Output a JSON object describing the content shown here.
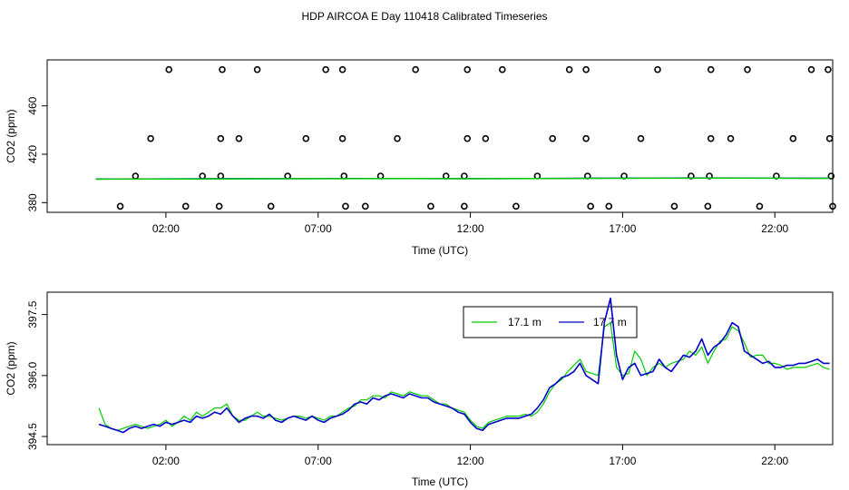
{
  "title": "HDP AIRCOA E  Day 110418  Calibrated Timeseries",
  "chart_data": [
    {
      "type": "scatter",
      "xlabel": "Time (UTC)",
      "ylabel": "CO2 (ppm)",
      "xlim": [
        -1.9,
        23.9
      ],
      "ylim": [
        372,
        498
      ],
      "x_ticks": [
        2,
        7,
        12,
        17,
        22
      ],
      "x_tick_labels": [
        "02:00",
        "07:00",
        "12:00",
        "17:00",
        "22:00"
      ],
      "y_ticks": [
        380,
        420,
        460
      ],
      "y_tick_labels": [
        "380",
        "420",
        "460"
      ],
      "grid": false,
      "points": [
        {
          "x": 2.1,
          "y": 490
        },
        {
          "x": 3.85,
          "y": 490
        },
        {
          "x": 5.0,
          "y": 490
        },
        {
          "x": 7.25,
          "y": 490
        },
        {
          "x": 7.8,
          "y": 490
        },
        {
          "x": 10.2,
          "y": 490
        },
        {
          "x": 11.9,
          "y": 490
        },
        {
          "x": 13.05,
          "y": 490
        },
        {
          "x": 15.25,
          "y": 490
        },
        {
          "x": 15.8,
          "y": 490
        },
        {
          "x": 18.15,
          "y": 490
        },
        {
          "x": 19.9,
          "y": 490
        },
        {
          "x": 21.1,
          "y": 490
        },
        {
          "x": 23.2,
          "y": 490
        },
        {
          "x": 23.75,
          "y": 490
        },
        {
          "x": 1.5,
          "y": 433
        },
        {
          "x": 3.8,
          "y": 433
        },
        {
          "x": 4.4,
          "y": 433
        },
        {
          "x": 6.6,
          "y": 433
        },
        {
          "x": 7.8,
          "y": 433
        },
        {
          "x": 9.6,
          "y": 433
        },
        {
          "x": 11.9,
          "y": 433
        },
        {
          "x": 12.5,
          "y": 433
        },
        {
          "x": 14.7,
          "y": 433
        },
        {
          "x": 15.8,
          "y": 433
        },
        {
          "x": 17.6,
          "y": 433
        },
        {
          "x": 19.9,
          "y": 433
        },
        {
          "x": 20.55,
          "y": 433
        },
        {
          "x": 22.6,
          "y": 433
        },
        {
          "x": 23.8,
          "y": 433
        },
        {
          "x": 1.0,
          "y": 402
        },
        {
          "x": 3.2,
          "y": 402
        },
        {
          "x": 3.8,
          "y": 402
        },
        {
          "x": 6.0,
          "y": 402
        },
        {
          "x": 7.85,
          "y": 402
        },
        {
          "x": 9.05,
          "y": 402
        },
        {
          "x": 11.2,
          "y": 402
        },
        {
          "x": 11.8,
          "y": 402
        },
        {
          "x": 14.2,
          "y": 402
        },
        {
          "x": 15.85,
          "y": 402
        },
        {
          "x": 17.05,
          "y": 402
        },
        {
          "x": 19.25,
          "y": 402
        },
        {
          "x": 19.85,
          "y": 402
        },
        {
          "x": 22.05,
          "y": 402
        },
        {
          "x": 23.85,
          "y": 402
        },
        {
          "x": 0.5,
          "y": 377
        },
        {
          "x": 2.65,
          "y": 377
        },
        {
          "x": 3.75,
          "y": 377
        },
        {
          "x": 5.45,
          "y": 377
        },
        {
          "x": 7.9,
          "y": 377
        },
        {
          "x": 8.55,
          "y": 377
        },
        {
          "x": 10.7,
          "y": 377
        },
        {
          "x": 11.8,
          "y": 377
        },
        {
          "x": 13.5,
          "y": 377
        },
        {
          "x": 15.95,
          "y": 377
        },
        {
          "x": 16.55,
          "y": 377
        },
        {
          "x": 18.7,
          "y": 377
        },
        {
          "x": 19.8,
          "y": 377
        },
        {
          "x": 21.5,
          "y": 377
        },
        {
          "x": 23.9,
          "y": 377
        }
      ],
      "series": [
        {
          "color": "#0000cc",
          "x": [
            -0.3,
            2,
            4,
            6,
            8,
            10,
            12,
            14,
            16,
            18,
            20,
            22,
            23.8
          ],
          "values": [
            399.5,
            399.7,
            399.8,
            399.8,
            399.9,
            400.0,
            399.8,
            400.0,
            400.2,
            400.3,
            400.4,
            400.3,
            400.2
          ]
        },
        {
          "color": "#00cc00",
          "x": [
            -0.3,
            2,
            4,
            6,
            8,
            10,
            12,
            14,
            16,
            18,
            20,
            22,
            23.8
          ],
          "values": [
            399.4,
            399.6,
            399.7,
            399.8,
            399.8,
            399.9,
            399.8,
            399.9,
            400.1,
            400.2,
            400.3,
            400.2,
            400.1
          ]
        }
      ]
    },
    {
      "type": "line",
      "xlabel": "Time (UTC)",
      "ylabel": "CO2 (ppm)",
      "xlim": [
        -1.9,
        23.9
      ],
      "ylim": [
        394.3,
        398.05
      ],
      "x_ticks": [
        2,
        7,
        12,
        17,
        22
      ],
      "x_tick_labels": [
        "02:00",
        "07:00",
        "12:00",
        "17:00",
        "22:00"
      ],
      "y_ticks": [
        394.5,
        396.0,
        397.5
      ],
      "y_tick_labels": [
        "394.5",
        "396.0",
        "397.5"
      ],
      "grid": false,
      "legend": {
        "position": "top-right"
      },
      "series": [
        {
          "name": "17.1 m",
          "color": "#00cc00",
          "x": [
            -0.2,
            0.0,
            0.2,
            0.4,
            0.6,
            0.8,
            1.0,
            1.2,
            1.4,
            1.6,
            1.8,
            2.0,
            2.2,
            2.4,
            2.6,
            2.8,
            3.0,
            3.2,
            3.4,
            3.6,
            3.8,
            4.0,
            4.2,
            4.4,
            4.6,
            4.8,
            5.0,
            5.2,
            5.4,
            5.6,
            5.8,
            6.0,
            6.2,
            6.4,
            6.6,
            6.8,
            7.0,
            7.2,
            7.4,
            7.6,
            7.8,
            8.0,
            8.2,
            8.4,
            8.6,
            8.8,
            9.0,
            9.2,
            9.4,
            9.6,
            9.8,
            10.0,
            10.2,
            10.4,
            10.6,
            10.8,
            11.0,
            11.2,
            11.4,
            11.6,
            11.8,
            12.0,
            12.2,
            12.4,
            12.6,
            12.8,
            13.0,
            13.2,
            13.4,
            13.6,
            13.8,
            14.0,
            14.2,
            14.4,
            14.6,
            14.8,
            15.0,
            15.2,
            15.4,
            15.6,
            15.8,
            16.0,
            16.2,
            16.4,
            16.6,
            16.8,
            17.0,
            17.2,
            17.4,
            17.6,
            17.8,
            18.0,
            18.2,
            18.4,
            18.6,
            18.8,
            19.0,
            19.2,
            19.4,
            19.6,
            19.8,
            20.0,
            20.2,
            20.4,
            20.6,
            20.8,
            21.0,
            21.2,
            21.4,
            21.6,
            21.8,
            22.0,
            22.2,
            22.4,
            22.6,
            22.8,
            23.0,
            23.2,
            23.4,
            23.6,
            23.8
          ],
          "values": [
            395.2,
            394.8,
            394.7,
            394.65,
            394.7,
            394.75,
            394.8,
            394.75,
            394.7,
            394.75,
            394.8,
            394.9,
            394.75,
            394.85,
            395.0,
            394.9,
            395.1,
            395.0,
            395.1,
            395.2,
            395.2,
            395.3,
            395.0,
            394.9,
            394.9,
            395.0,
            395.1,
            395.0,
            395.0,
            394.95,
            394.9,
            394.95,
            395.0,
            395.0,
            394.95,
            395.0,
            394.95,
            394.9,
            395.0,
            395.0,
            395.1,
            395.2,
            395.25,
            395.4,
            395.4,
            395.5,
            395.5,
            395.45,
            395.6,
            395.55,
            395.5,
            395.6,
            395.55,
            395.5,
            395.5,
            395.4,
            395.3,
            395.3,
            395.2,
            395.15,
            395.1,
            394.9,
            394.75,
            394.7,
            394.85,
            394.9,
            394.95,
            395.0,
            395.0,
            395.0,
            395.05,
            395.0,
            395.1,
            395.3,
            395.6,
            395.8,
            395.9,
            396.1,
            396.25,
            396.4,
            396.1,
            396.05,
            396.0,
            397.2,
            397.3,
            396.2,
            396.0,
            396.05,
            396.6,
            396.4,
            396.0,
            396.2,
            396.3,
            396.2,
            396.3,
            396.35,
            396.4,
            396.6,
            396.5,
            396.7,
            396.3,
            396.6,
            396.85,
            396.9,
            397.2,
            397.1,
            396.8,
            396.45,
            396.5,
            396.5,
            396.3,
            396.3,
            396.25,
            396.15,
            396.2,
            396.2,
            396.2,
            396.25,
            396.3,
            396.2,
            396.15
          ]
        },
        {
          "name": "17.7 m",
          "color": "#0000cc",
          "x": [
            -0.2,
            0.0,
            0.2,
            0.4,
            0.6,
            0.8,
            1.0,
            1.2,
            1.4,
            1.6,
            1.8,
            2.0,
            2.2,
            2.4,
            2.6,
            2.8,
            3.0,
            3.2,
            3.4,
            3.6,
            3.8,
            4.0,
            4.2,
            4.4,
            4.6,
            4.8,
            5.0,
            5.2,
            5.4,
            5.6,
            5.8,
            6.0,
            6.2,
            6.4,
            6.6,
            6.8,
            7.0,
            7.2,
            7.4,
            7.6,
            7.8,
            8.0,
            8.2,
            8.4,
            8.6,
            8.8,
            9.0,
            9.2,
            9.4,
            9.6,
            9.8,
            10.0,
            10.2,
            10.4,
            10.6,
            10.8,
            11.0,
            11.2,
            11.4,
            11.6,
            11.8,
            12.0,
            12.2,
            12.4,
            12.6,
            12.8,
            13.0,
            13.2,
            13.4,
            13.6,
            13.8,
            14.0,
            14.2,
            14.4,
            14.6,
            14.8,
            15.0,
            15.2,
            15.4,
            15.6,
            15.8,
            16.0,
            16.2,
            16.4,
            16.6,
            16.8,
            17.0,
            17.2,
            17.4,
            17.6,
            17.8,
            18.0,
            18.2,
            18.4,
            18.6,
            18.8,
            19.0,
            19.2,
            19.4,
            19.6,
            19.8,
            20.0,
            20.2,
            20.4,
            20.6,
            20.8,
            21.0,
            21.2,
            21.4,
            21.6,
            21.8,
            22.0,
            22.2,
            22.4,
            22.6,
            22.8,
            23.0,
            23.2,
            23.4,
            23.6,
            23.8
          ],
          "values": [
            394.8,
            394.75,
            394.7,
            394.65,
            394.6,
            394.7,
            394.75,
            394.7,
            394.75,
            394.8,
            394.75,
            394.85,
            394.8,
            394.85,
            394.9,
            394.85,
            395.0,
            394.95,
            395.0,
            395.1,
            395.05,
            395.2,
            395.0,
            394.85,
            394.95,
            395.0,
            395.0,
            394.95,
            395.05,
            394.9,
            394.85,
            394.95,
            395.0,
            394.95,
            394.9,
            395.0,
            394.9,
            394.85,
            394.95,
            395.0,
            395.05,
            395.15,
            395.3,
            395.35,
            395.3,
            395.45,
            395.4,
            395.5,
            395.55,
            395.5,
            395.45,
            395.55,
            395.5,
            395.45,
            395.45,
            395.35,
            395.3,
            395.25,
            395.2,
            395.1,
            395.05,
            394.85,
            394.7,
            394.65,
            394.8,
            394.85,
            394.9,
            394.95,
            394.95,
            394.95,
            395.0,
            395.05,
            395.2,
            395.4,
            395.7,
            395.8,
            395.95,
            396.0,
            396.1,
            396.3,
            396.0,
            395.9,
            395.8,
            397.3,
            397.9,
            396.5,
            395.9,
            396.2,
            396.3,
            396.0,
            396.05,
            396.1,
            396.4,
            396.2,
            396.1,
            396.3,
            396.5,
            396.45,
            396.6,
            396.9,
            396.5,
            396.7,
            396.8,
            397.0,
            397.3,
            397.2,
            396.6,
            396.5,
            396.4,
            396.3,
            396.35,
            396.2,
            396.2,
            396.25,
            396.25,
            396.3,
            396.3,
            396.35,
            396.4,
            396.3,
            396.3
          ]
        }
      ]
    }
  ]
}
